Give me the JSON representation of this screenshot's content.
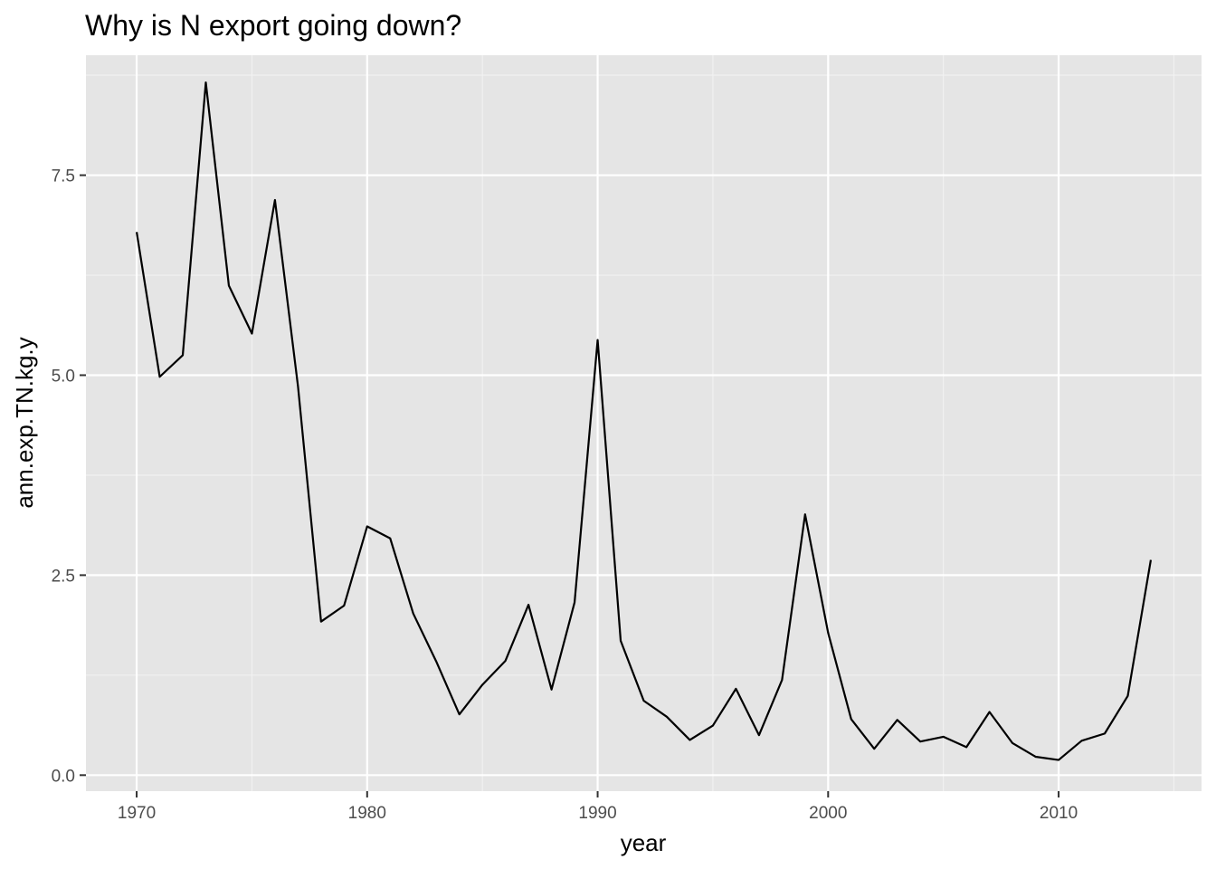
{
  "chart_data": {
    "type": "line",
    "title": "Why is N export going down?",
    "xlabel": "year",
    "ylabel": "ann.exp.TN.kg.y",
    "xlim": [
      1967.8,
      2016.2
    ],
    "ylim": [
      -0.2,
      9.0
    ],
    "x_ticks": [
      1970,
      1980,
      1990,
      2000,
      2010
    ],
    "x_tick_labels": [
      "1970",
      "1980",
      "1990",
      "2000",
      "2010"
    ],
    "y_ticks": [
      0.0,
      2.5,
      5.0,
      7.5
    ],
    "y_tick_labels": [
      "0.0",
      "2.5",
      "5.0",
      "7.5"
    ],
    "grid": true,
    "series": [
      {
        "color": "#000000",
        "x": [
          1970,
          1971,
          1972,
          1973,
          1974,
          1975,
          1976,
          1977,
          1978,
          1979,
          1980,
          1981,
          1982,
          1983,
          1984,
          1985,
          1986,
          1987,
          1988,
          1989,
          1990,
          1991,
          1992,
          1993,
          1994,
          1995,
          1996,
          1997,
          1998,
          1999,
          2000,
          2001,
          2002,
          2003,
          2004,
          2005,
          2006,
          2007,
          2008,
          2009,
          2010,
          2011,
          2012,
          2013,
          2014
        ],
        "y": [
          6.79,
          4.98,
          5.25,
          8.66,
          6.12,
          5.52,
          7.19,
          4.86,
          1.92,
          2.12,
          3.11,
          2.96,
          2.02,
          1.42,
          0.76,
          1.13,
          1.43,
          2.13,
          1.07,
          2.16,
          5.44,
          1.68,
          0.93,
          0.73,
          0.44,
          0.62,
          1.08,
          0.5,
          1.19,
          3.26,
          1.78,
          0.7,
          0.33,
          0.69,
          0.42,
          0.48,
          0.35,
          0.79,
          0.4,
          0.23,
          0.19,
          0.43,
          0.52,
          0.99,
          2.69
        ]
      }
    ]
  }
}
